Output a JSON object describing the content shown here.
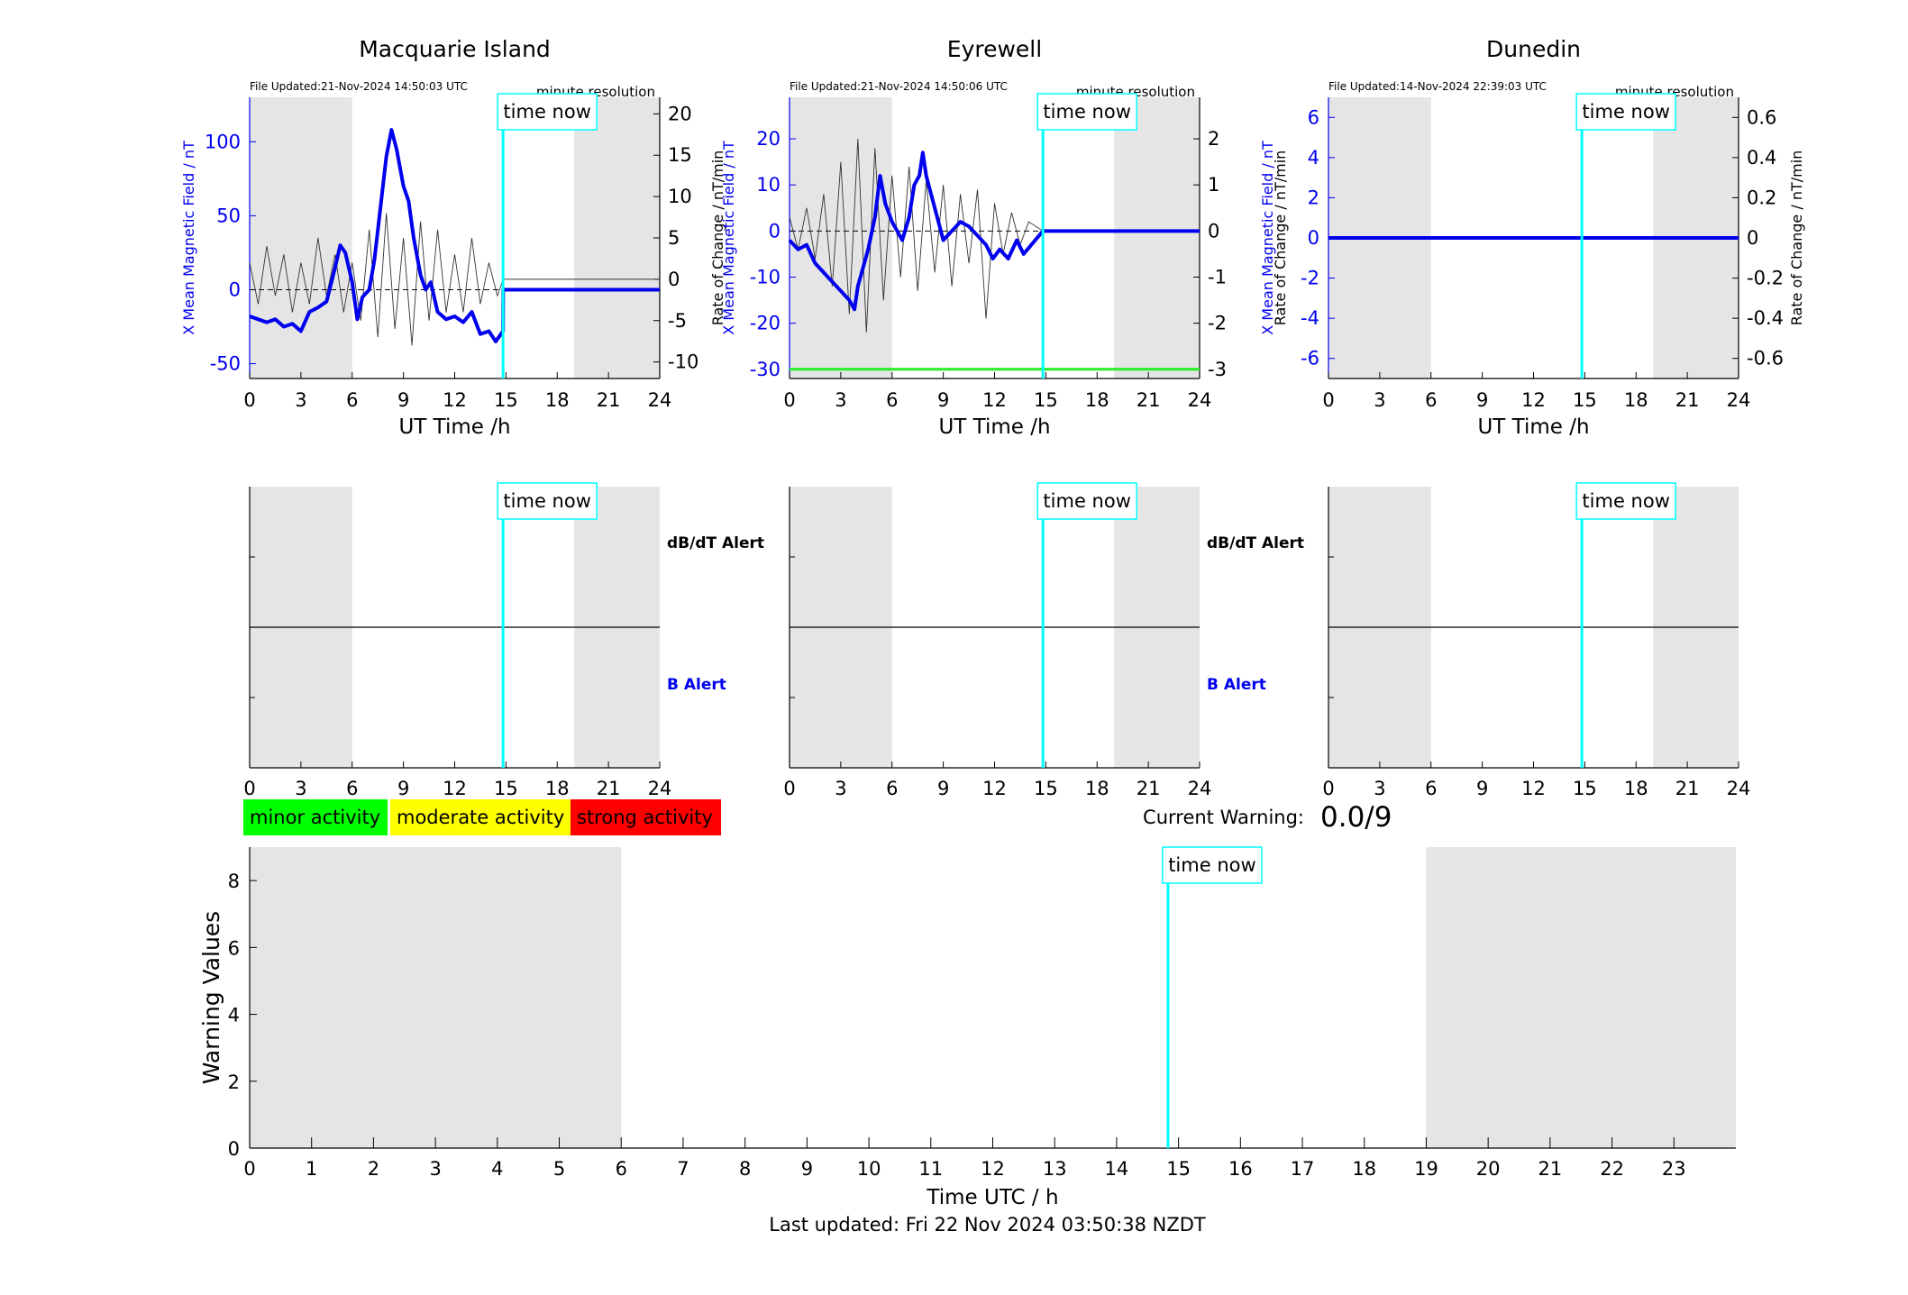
{
  "colors": {
    "shade": "#e5e5e5",
    "field": "#0000ee",
    "now_line": "#00ffff",
    "threshold": "#22ee22",
    "minor": "#00ff00",
    "moderate": "#ffff00",
    "strong": "#ff0000"
  },
  "labels": {
    "time_now": "time now",
    "minute_resolution": "minute resolution",
    "ut_time": "UT Time /h",
    "y_field": "X Mean Magnetic Field / nT",
    "y_rate": "Rate of Change / nT/min",
    "dbdt_alert": "dB/dT Alert",
    "b_alert": "B Alert",
    "minor": "minor activity",
    "moderate": "moderate activity",
    "strong": "strong activity",
    "current_warning": "Current Warning:",
    "current_warning_value": "0.0/9",
    "warning_values": "Warning Values",
    "time_utc": "Time UTC / h",
    "last_updated": "Last updated: Fri 22 Nov 2024 03:50:38 NZDT"
  },
  "stations": [
    {
      "name": "Macquarie Island",
      "file_updated": "File Updated:21-Nov-2024 14:50:03 UTC",
      "field_ticks": [
        "-50",
        "0",
        "50",
        "100"
      ],
      "rate_ticks": [
        "-10",
        "-5",
        "0",
        "5",
        "10",
        "15",
        "20"
      ]
    },
    {
      "name": "Eyrewell",
      "file_updated": "File Updated:21-Nov-2024 14:50:06 UTC",
      "field_ticks": [
        "-30",
        "-20",
        "-10",
        "0",
        "10",
        "20"
      ],
      "rate_ticks": [
        "-3",
        "-2",
        "-1",
        "0",
        "1",
        "2"
      ]
    },
    {
      "name": "Dunedin",
      "file_updated": "File Updated:14-Nov-2024 22:39:03 UTC",
      "field_ticks": [
        "-6",
        "-4",
        "-2",
        "0",
        "2",
        "4",
        "6"
      ],
      "rate_ticks": [
        "-0.6",
        "-0.4",
        "-0.2",
        "0",
        "0.2",
        "0.4",
        "0.6"
      ]
    }
  ],
  "chart_data": [
    {
      "type": "line",
      "title": "Macquarie Island",
      "xlabel": "UT Time /h",
      "ylabel": "X Mean Magnetic Field / nT",
      "ylabel_right": "Rate of Change / nT/min",
      "xlim": [
        0,
        24
      ],
      "ylim": [
        -60,
        130
      ],
      "ylim_right": [
        -12,
        22
      ],
      "x_ticks": [
        0,
        3,
        6,
        9,
        12,
        15,
        18,
        21,
        24
      ],
      "night_shading": [
        [
          0,
          6
        ],
        [
          19,
          24
        ]
      ],
      "time_now": 14.83,
      "series": [
        {
          "axis": "left",
          "x": [
            0,
            0.5,
            1,
            1.5,
            2,
            2.5,
            3,
            3.5,
            4,
            4.5,
            5,
            5.3,
            5.6,
            6,
            6.3,
            6.6,
            7,
            7.3,
            7.6,
            8,
            8.3,
            8.6,
            9,
            9.3,
            9.6,
            10,
            10.3,
            10.6,
            11,
            11.5,
            12,
            12.5,
            13,
            13.5,
            14,
            14.4,
            14.83,
            14.84,
            24
          ],
          "y": [
            -18,
            -20,
            -22,
            -20,
            -25,
            -23,
            -28,
            -15,
            -12,
            -8,
            15,
            30,
            25,
            5,
            -20,
            -5,
            0,
            20,
            50,
            90,
            108,
            95,
            70,
            60,
            35,
            10,
            0,
            5,
            -15,
            -20,
            -18,
            -22,
            -15,
            -30,
            -28,
            -35,
            -28,
            0,
            0
          ]
        },
        {
          "axis": "right",
          "x": [
            0,
            0.5,
            1,
            1.5,
            2,
            2.5,
            3,
            3.5,
            4,
            4.5,
            5,
            5.5,
            6,
            6.5,
            7,
            7.5,
            8,
            8.5,
            9,
            9.5,
            10,
            10.5,
            11,
            11.5,
            12,
            12.5,
            13,
            13.5,
            14,
            14.5,
            14.83,
            24
          ],
          "y": [
            2,
            -3,
            4,
            -2,
            3,
            -4,
            2,
            -3,
            5,
            -2,
            3,
            -4,
            2,
            -5,
            6,
            -7,
            8,
            -6,
            5,
            -8,
            7,
            -5,
            6,
            -4,
            3,
            -4,
            5,
            -3,
            2,
            -2,
            0,
            0
          ]
        }
      ]
    },
    {
      "type": "line",
      "title": "Eyrewell",
      "xlabel": "UT Time /h",
      "ylabel": "X Mean Magnetic Field / nT",
      "ylabel_right": "Rate of Change / nT/min",
      "xlim": [
        0,
        24
      ],
      "ylim": [
        -32,
        29
      ],
      "ylim_right": [
        -3.2,
        2.9
      ],
      "x_ticks": [
        0,
        3,
        6,
        9,
        12,
        15,
        18,
        21,
        24
      ],
      "night_shading": [
        [
          0,
          6
        ],
        [
          19,
          24
        ]
      ],
      "time_now": 14.83,
      "threshold_right": -3,
      "series": [
        {
          "axis": "left",
          "x": [
            0,
            0.5,
            1,
            1.5,
            2,
            2.5,
            3,
            3.5,
            3.8,
            4,
            4.3,
            4.6,
            5,
            5.3,
            5.6,
            6,
            6.3,
            6.6,
            7,
            7.3,
            7.6,
            7.8,
            8,
            8.5,
            9,
            9.5,
            10,
            10.5,
            11,
            11.5,
            11.9,
            12.3,
            12.8,
            13.3,
            13.7,
            14.83,
            24
          ],
          "y": [
            -2,
            -4,
            -3,
            -7,
            -9,
            -11,
            -13,
            -15,
            -17,
            -12,
            -8,
            -4,
            3,
            12,
            6,
            2,
            0,
            -2,
            3,
            10,
            12,
            17,
            12,
            5,
            -2,
            0,
            2,
            1,
            -1,
            -3,
            -6,
            -4,
            -6,
            -2,
            -5,
            0,
            0
          ]
        },
        {
          "axis": "right",
          "x": [
            0,
            0.5,
            1,
            1.5,
            2,
            2.5,
            3,
            3.5,
            4,
            4.5,
            5,
            5.5,
            6,
            6.5,
            7,
            7.5,
            8,
            8.5,
            9,
            9.5,
            10,
            10.5,
            11,
            11.5,
            12,
            12.5,
            13,
            13.5,
            14,
            14.83,
            24
          ],
          "y": [
            0.3,
            -0.4,
            0.5,
            -0.6,
            0.8,
            -1.2,
            1.5,
            -1.8,
            2,
            -2.2,
            1.8,
            -1.5,
            1.2,
            -1,
            1.4,
            -1.3,
            1.1,
            -0.9,
            1,
            -1.2,
            0.8,
            -0.7,
            0.9,
            -1.9,
            0.6,
            -0.5,
            0.4,
            -0.3,
            0.2,
            0,
            0
          ]
        }
      ]
    },
    {
      "type": "line",
      "title": "Dunedin",
      "xlabel": "UT Time /h",
      "ylabel": "X Mean Magnetic Field / nT",
      "ylabel_right": "Rate of Change / nT/min",
      "xlim": [
        0,
        24
      ],
      "ylim": [
        -7,
        7
      ],
      "ylim_right": [
        -0.7,
        0.7
      ],
      "x_ticks": [
        0,
        3,
        6,
        9,
        12,
        15,
        18,
        21,
        24
      ],
      "night_shading": [
        [
          0,
          6
        ],
        [
          19,
          24
        ]
      ],
      "time_now": 14.83,
      "series": [
        {
          "axis": "left",
          "x": [
            0,
            24
          ],
          "y": [
            0,
            0
          ]
        },
        {
          "axis": "right",
          "x": [
            0,
            24
          ],
          "y": [
            0,
            0
          ]
        }
      ]
    },
    {
      "type": "bar",
      "title": "",
      "xlabel": "Time UTC / h",
      "ylabel": "Warning Values",
      "xlim": [
        0,
        24
      ],
      "ylim": [
        0,
        9
      ],
      "x_ticks": [
        0,
        1,
        2,
        3,
        4,
        5,
        6,
        7,
        8,
        9,
        10,
        11,
        12,
        13,
        14,
        15,
        16,
        17,
        18,
        19,
        20,
        21,
        22,
        23
      ],
      "y_ticks": [
        0,
        2,
        4,
        6,
        8
      ],
      "night_shading": [
        [
          0,
          6
        ],
        [
          19,
          24
        ]
      ],
      "time_now": 14.83,
      "values": []
    }
  ]
}
